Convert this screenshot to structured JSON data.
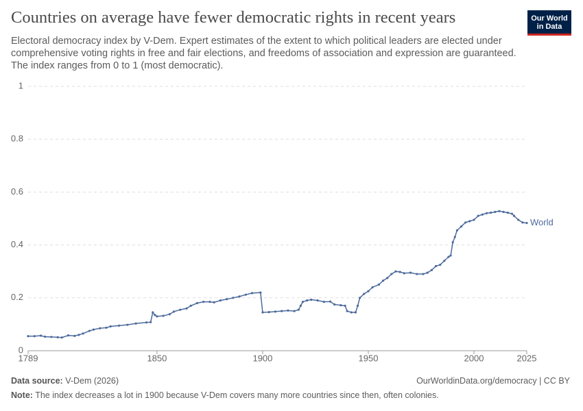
{
  "chart_data": {
    "type": "line",
    "title": "Countries on average have fewer democratic rights in recent years",
    "subtitle": "Electoral democracy index by V-Dem. Expert estimates of the extent to which political leaders are elected under comprehensive voting rights in free and fair elections, and freedoms of association and expression are guaranteed. The index ranges from 0 to 1 (most democratic).",
    "logo": [
      "Our World",
      "in Data"
    ],
    "source_label": "Data source:",
    "source": "V-Dem (2026)",
    "url": "OurWorldinData.org/democracy | CC BY",
    "note_label": "Note:",
    "note": "The index decreases a lot in 1900 because V-Dem covers many more countries since then, often colonies.",
    "xlim": [
      1789,
      2025
    ],
    "xticks": [
      1789,
      1850,
      1900,
      1950,
      2000,
      2025
    ],
    "ylim": [
      0,
      1
    ],
    "yticks": [
      0,
      0.2,
      0.4,
      0.6,
      0.8,
      1
    ],
    "grid": true,
    "x": [
      1789,
      1792,
      1795,
      1797,
      1800,
      1803,
      1805,
      1808,
      1811,
      1813,
      1815,
      1818,
      1820,
      1823,
      1826,
      1828,
      1832,
      1836,
      1840,
      1845,
      1847,
      1848,
      1849,
      1850,
      1853,
      1856,
      1858,
      1861,
      1864,
      1866,
      1869,
      1872,
      1875,
      1877,
      1880,
      1883,
      1886,
      1889,
      1892,
      1895,
      1899,
      1900,
      1903,
      1906,
      1909,
      1912,
      1915,
      1917,
      1918,
      1919,
      1921,
      1923,
      1926,
      1929,
      1932,
      1934,
      1937,
      1939,
      1940,
      1942,
      1944,
      1945,
      1946,
      1948,
      1950,
      1952,
      1955,
      1957,
      1959,
      1961,
      1963,
      1965,
      1967,
      1970,
      1973,
      1976,
      1978,
      1980,
      1982,
      1984,
      1986,
      1988,
      1989,
      1990,
      1991,
      1992,
      1994,
      1996,
      1998,
      2000,
      2002,
      2004,
      2006,
      2008,
      2010,
      2012,
      2014,
      2016,
      2018,
      2019,
      2021,
      2023,
      2025
    ],
    "series": [
      {
        "name": "World",
        "color": "#4c6a9c",
        "values": [
          0.055,
          0.055,
          0.057,
          0.053,
          0.052,
          0.051,
          0.05,
          0.058,
          0.056,
          0.06,
          0.065,
          0.075,
          0.08,
          0.085,
          0.087,
          0.092,
          0.095,
          0.098,
          0.103,
          0.107,
          0.108,
          0.145,
          0.135,
          0.13,
          0.132,
          0.138,
          0.148,
          0.155,
          0.16,
          0.17,
          0.18,
          0.185,
          0.185,
          0.183,
          0.19,
          0.195,
          0.2,
          0.205,
          0.212,
          0.218,
          0.22,
          0.145,
          0.146,
          0.148,
          0.15,
          0.152,
          0.15,
          0.155,
          0.17,
          0.185,
          0.19,
          0.193,
          0.19,
          0.185,
          0.186,
          0.175,
          0.172,
          0.17,
          0.15,
          0.145,
          0.145,
          0.17,
          0.2,
          0.215,
          0.225,
          0.24,
          0.25,
          0.265,
          0.275,
          0.29,
          0.3,
          0.298,
          0.293,
          0.295,
          0.29,
          0.29,
          0.295,
          0.305,
          0.32,
          0.325,
          0.34,
          0.355,
          0.36,
          0.41,
          0.43,
          0.455,
          0.47,
          0.485,
          0.49,
          0.495,
          0.51,
          0.515,
          0.52,
          0.522,
          0.525,
          0.528,
          0.525,
          0.522,
          0.518,
          0.51,
          0.495,
          0.485,
          0.483
        ]
      }
    ]
  }
}
